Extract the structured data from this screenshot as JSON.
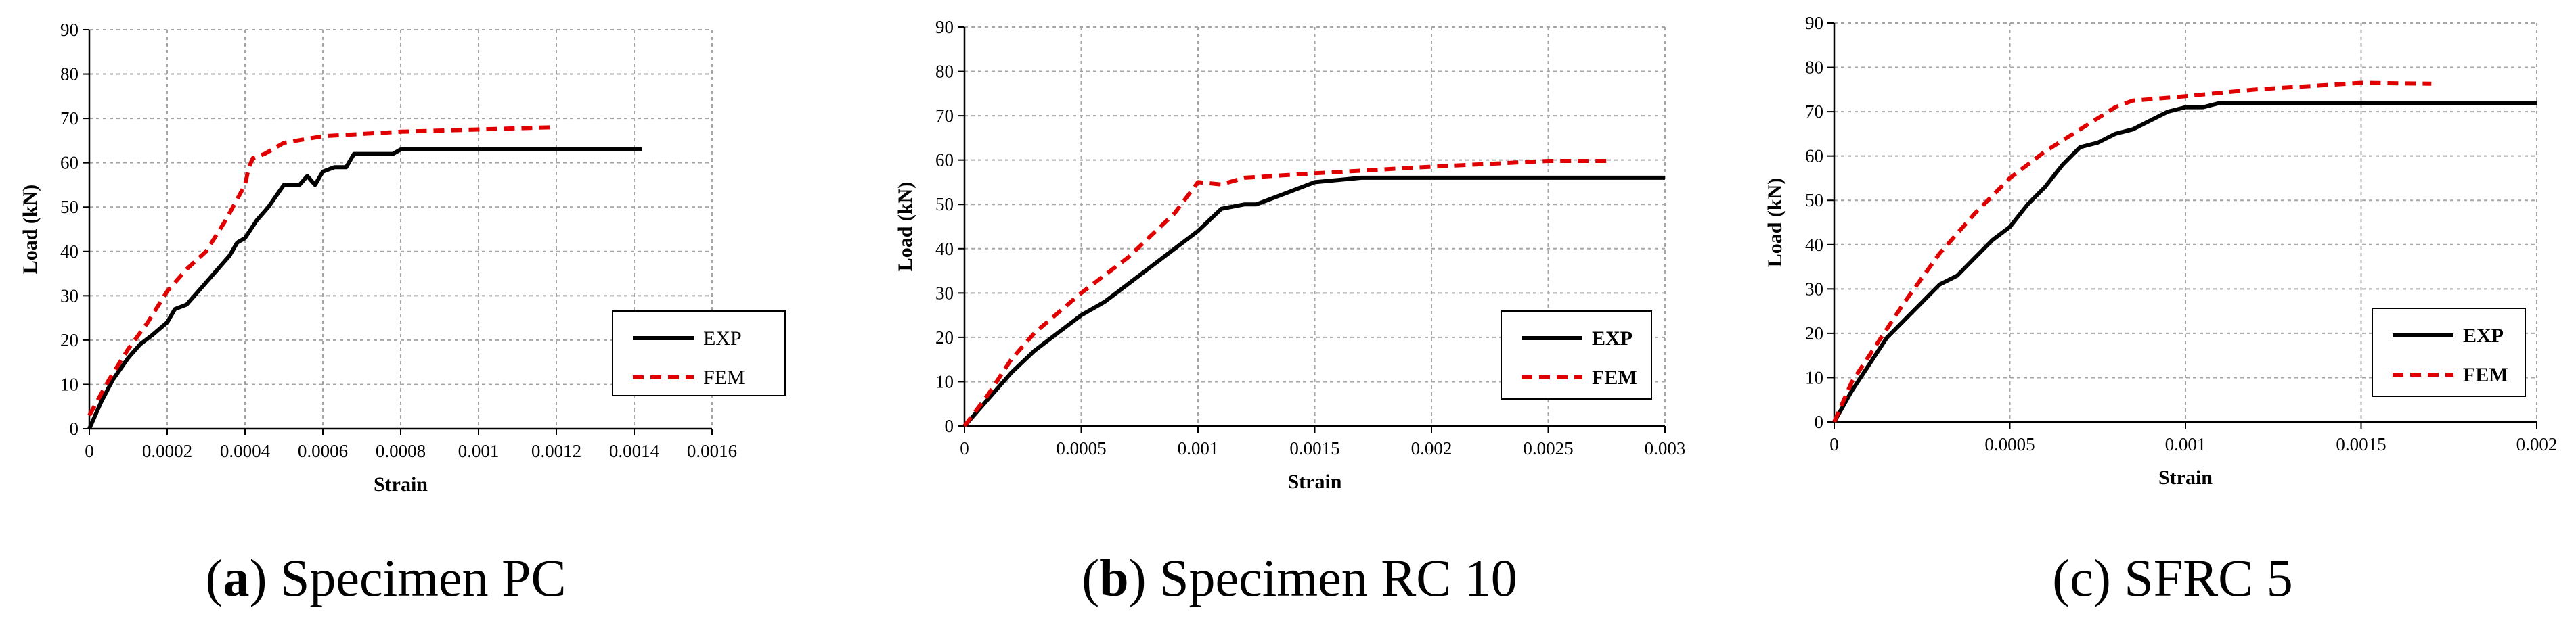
{
  "colors": {
    "exp": "#000000",
    "fem": "#e00000",
    "grid": "#a6a6a6",
    "axis": "#000000"
  },
  "chart_data": [
    {
      "type": "line",
      "panel_label": "a",
      "caption_text": "Specimen PC",
      "xlabel": "Strain",
      "ylabel": "Load (kN)",
      "xlim": [
        0,
        0.0016
      ],
      "ylim": [
        0,
        90
      ],
      "x_ticks": [
        0,
        0.0002,
        0.0004,
        0.0006,
        0.0008,
        0.001,
        0.0012,
        0.0014,
        0.0016
      ],
      "x_tick_labels": [
        "0",
        "0.0002",
        "0.0004",
        "0.0006",
        "0.0008",
        "0.001",
        "0.0012",
        "0.0014",
        "0.0016"
      ],
      "y_ticks": [
        0,
        10,
        20,
        30,
        40,
        50,
        60,
        70,
        80,
        90
      ],
      "y_tick_labels": [
        "0",
        "10",
        "20",
        "30",
        "40",
        "50",
        "60",
        "70",
        "80",
        "90"
      ],
      "legend_position": "bottom-right",
      "legend_bold": false,
      "series": [
        {
          "name": "EXP",
          "style": "solid",
          "x": [
            0,
            3e-05,
            6e-05,
            0.0001,
            0.00013,
            0.00016,
            0.0002,
            0.00022,
            0.00025,
            0.00028,
            0.0003,
            0.00033,
            0.00036,
            0.00038,
            0.0004,
            0.00043,
            0.00046,
            0.0005,
            0.00054,
            0.00056,
            0.00058,
            0.0006,
            0.00063,
            0.00066,
            0.00068,
            0.0007,
            0.00075,
            0.00078,
            0.0008,
            0.001,
            0.0012,
            0.00142
          ],
          "y": [
            0,
            6,
            11,
            16,
            19,
            21,
            24,
            27,
            28,
            31,
            33,
            36,
            39,
            42,
            43,
            47,
            50,
            55,
            55,
            57,
            55,
            58,
            59,
            59,
            62,
            62,
            62,
            62,
            63,
            63,
            63,
            63
          ]
        },
        {
          "name": "FEM",
          "style": "dashed",
          "x": [
            0,
            5e-05,
            0.0001,
            0.00015,
            0.0002,
            0.00025,
            0.0003,
            0.00035,
            0.0004,
            0.00041,
            0.00042,
            0.00045,
            0.0005,
            0.0006,
            0.0008,
            0.001,
            0.00119
          ],
          "y": [
            3,
            11,
            18,
            24,
            31,
            36,
            40,
            47,
            55,
            59,
            61,
            62,
            64.5,
            66,
            67,
            67.5,
            68
          ]
        }
      ]
    },
    {
      "type": "line",
      "panel_label": "b",
      "caption_text": "Specimen RC 10",
      "xlabel": "Strain",
      "ylabel": "Load (kN)",
      "xlim": [
        0,
        0.003
      ],
      "ylim": [
        0,
        90
      ],
      "x_ticks": [
        0,
        0.0005,
        0.001,
        0.0015,
        0.002,
        0.0025,
        0.003
      ],
      "x_tick_labels": [
        "0",
        "0.0005",
        "0.001",
        "0.0015",
        "0.002",
        "0.0025",
        "0.003"
      ],
      "y_ticks": [
        0,
        10,
        20,
        30,
        40,
        50,
        60,
        70,
        80,
        90
      ],
      "y_tick_labels": [
        "0",
        "10",
        "20",
        "30",
        "40",
        "50",
        "60",
        "70",
        "80",
        "90"
      ],
      "legend_position": "bottom-right",
      "legend_bold": true,
      "series": [
        {
          "name": "EXP",
          "style": "solid",
          "x": [
            0,
            0.0001,
            0.0002,
            0.0003,
            0.0004,
            0.0005,
            0.0006,
            0.0007,
            0.0008,
            0.0009,
            0.001,
            0.0011,
            0.0012,
            0.00125,
            0.0013,
            0.0014,
            0.0015,
            0.0016,
            0.0017,
            0.002,
            0.0025,
            0.003
          ],
          "y": [
            0,
            6,
            12,
            17,
            21,
            25,
            28,
            32,
            36,
            40,
            44,
            49,
            50,
            50,
            51,
            53,
            55,
            55.5,
            56,
            56,
            56,
            56
          ]
        },
        {
          "name": "FEM",
          "style": "dashed",
          "x": [
            0,
            0.0001,
            0.0002,
            0.0003,
            0.0005,
            0.0007,
            0.0009,
            0.001,
            0.0011,
            0.0012,
            0.0015,
            0.002,
            0.0025,
            0.00275
          ],
          "y": [
            0,
            7,
            15,
            21,
            30,
            38,
            48,
            55,
            54.5,
            56,
            57,
            58.5,
            59.8,
            59.8
          ]
        }
      ]
    },
    {
      "type": "line",
      "panel_label": "c",
      "caption_text": "SFRC 5",
      "xlabel": "Strain",
      "ylabel": "Load (kN)",
      "xlim": [
        0,
        0.002
      ],
      "ylim": [
        0,
        90
      ],
      "x_ticks": [
        0,
        0.0005,
        0.001,
        0.0015,
        0.002
      ],
      "x_tick_labels": [
        "0",
        "0.0005",
        "0.001",
        "0.0015",
        "0.002"
      ],
      "y_ticks": [
        0,
        10,
        20,
        30,
        40,
        50,
        60,
        70,
        80,
        90
      ],
      "y_tick_labels": [
        "0",
        "10",
        "20",
        "30",
        "40",
        "50",
        "60",
        "70",
        "80",
        "90"
      ],
      "legend_position": "bottom-right",
      "legend_bold": true,
      "series": [
        {
          "name": "EXP",
          "style": "solid",
          "x": [
            0,
            5e-05,
            0.0001,
            0.00015,
            0.0002,
            0.00025,
            0.0003,
            0.00035,
            0.0004,
            0.00045,
            0.0005,
            0.00055,
            0.0006,
            0.00065,
            0.0007,
            0.00075,
            0.0008,
            0.00085,
            0.0009,
            0.00095,
            0.001,
            0.00105,
            0.0011,
            0.0015,
            0.002
          ],
          "y": [
            0,
            7,
            13,
            19,
            23,
            27,
            31,
            33,
            37,
            41,
            44,
            49,
            53,
            58,
            62,
            63,
            65,
            66,
            68,
            70,
            71,
            71,
            72,
            72,
            72
          ]
        },
        {
          "name": "FEM",
          "style": "dashed",
          "x": [
            0,
            5e-05,
            0.0001,
            0.0002,
            0.0003,
            0.0004,
            0.0005,
            0.0006,
            0.0007,
            0.0008,
            0.00085,
            0.0009,
            0.001,
            0.0012,
            0.0015,
            0.0017
          ],
          "y": [
            0,
            9,
            15,
            27,
            38,
            47,
            55,
            61,
            66,
            71,
            72.5,
            72.8,
            73.5,
            75,
            76.5,
            76.3
          ]
        }
      ]
    }
  ]
}
